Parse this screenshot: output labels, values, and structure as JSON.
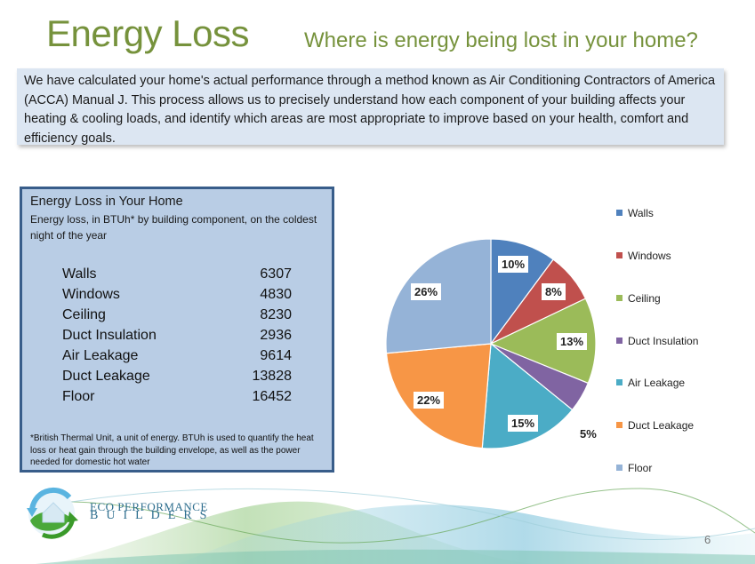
{
  "header": {
    "title": "Energy Loss",
    "subtitle": "Where is energy being lost in your home?"
  },
  "intro": {
    "text": "We have calculated your home's actual performance through a method known as Air Conditioning Contractors of America (ACCA) Manual J.  This process allows us to precisely understand how each component of your building affects your heating & cooling loads, and identify which areas are most appropriate to improve based on your health, comfort and efficiency goals."
  },
  "panel": {
    "title": "Energy Loss in Your Home",
    "subtitle": "Energy loss, in BTUh* by building component, on the coldest night of the year",
    "rows": [
      {
        "label": "Walls",
        "value": "6307"
      },
      {
        "label": "Windows",
        "value": "4830"
      },
      {
        "label": "Ceiling",
        "value": "8230"
      },
      {
        "label": "Duct Insulation",
        "value": "2936"
      },
      {
        "label": "Air Leakage",
        "value": "9614"
      },
      {
        "label": "Duct Leakage",
        "value": "13828"
      },
      {
        "label": "Floor",
        "value": "16452"
      }
    ],
    "footnote": "*British Thermal Unit, a unit of energy. BTUh is used to quantify the heat loss or heat gain through the building envelope, as well as the power needed for domestic hot water"
  },
  "chart_data": {
    "type": "pie",
    "title": "Energy Loss in Your Home",
    "categories": [
      "Walls",
      "Windows",
      "Ceiling",
      "Duct Insulation",
      "Air Leakage",
      "Duct Leakage",
      "Floor"
    ],
    "values": [
      6307,
      4830,
      8230,
      2936,
      9614,
      13828,
      16452
    ],
    "percent_labels": [
      "10%",
      "8%",
      "13%",
      "5%",
      "15%",
      "22%",
      "26%"
    ],
    "colors": [
      "#4f81bd",
      "#c0504d",
      "#9bbb59",
      "#8064a2",
      "#4bacc6",
      "#f79646",
      "#95b3d7"
    ],
    "legend_position": "right",
    "start_angle": "12 o'clock, clockwise"
  },
  "footer": {
    "logo_line1": "ECO PERFORMANCE",
    "logo_line2": "BUILDERS",
    "page_number": "6"
  }
}
